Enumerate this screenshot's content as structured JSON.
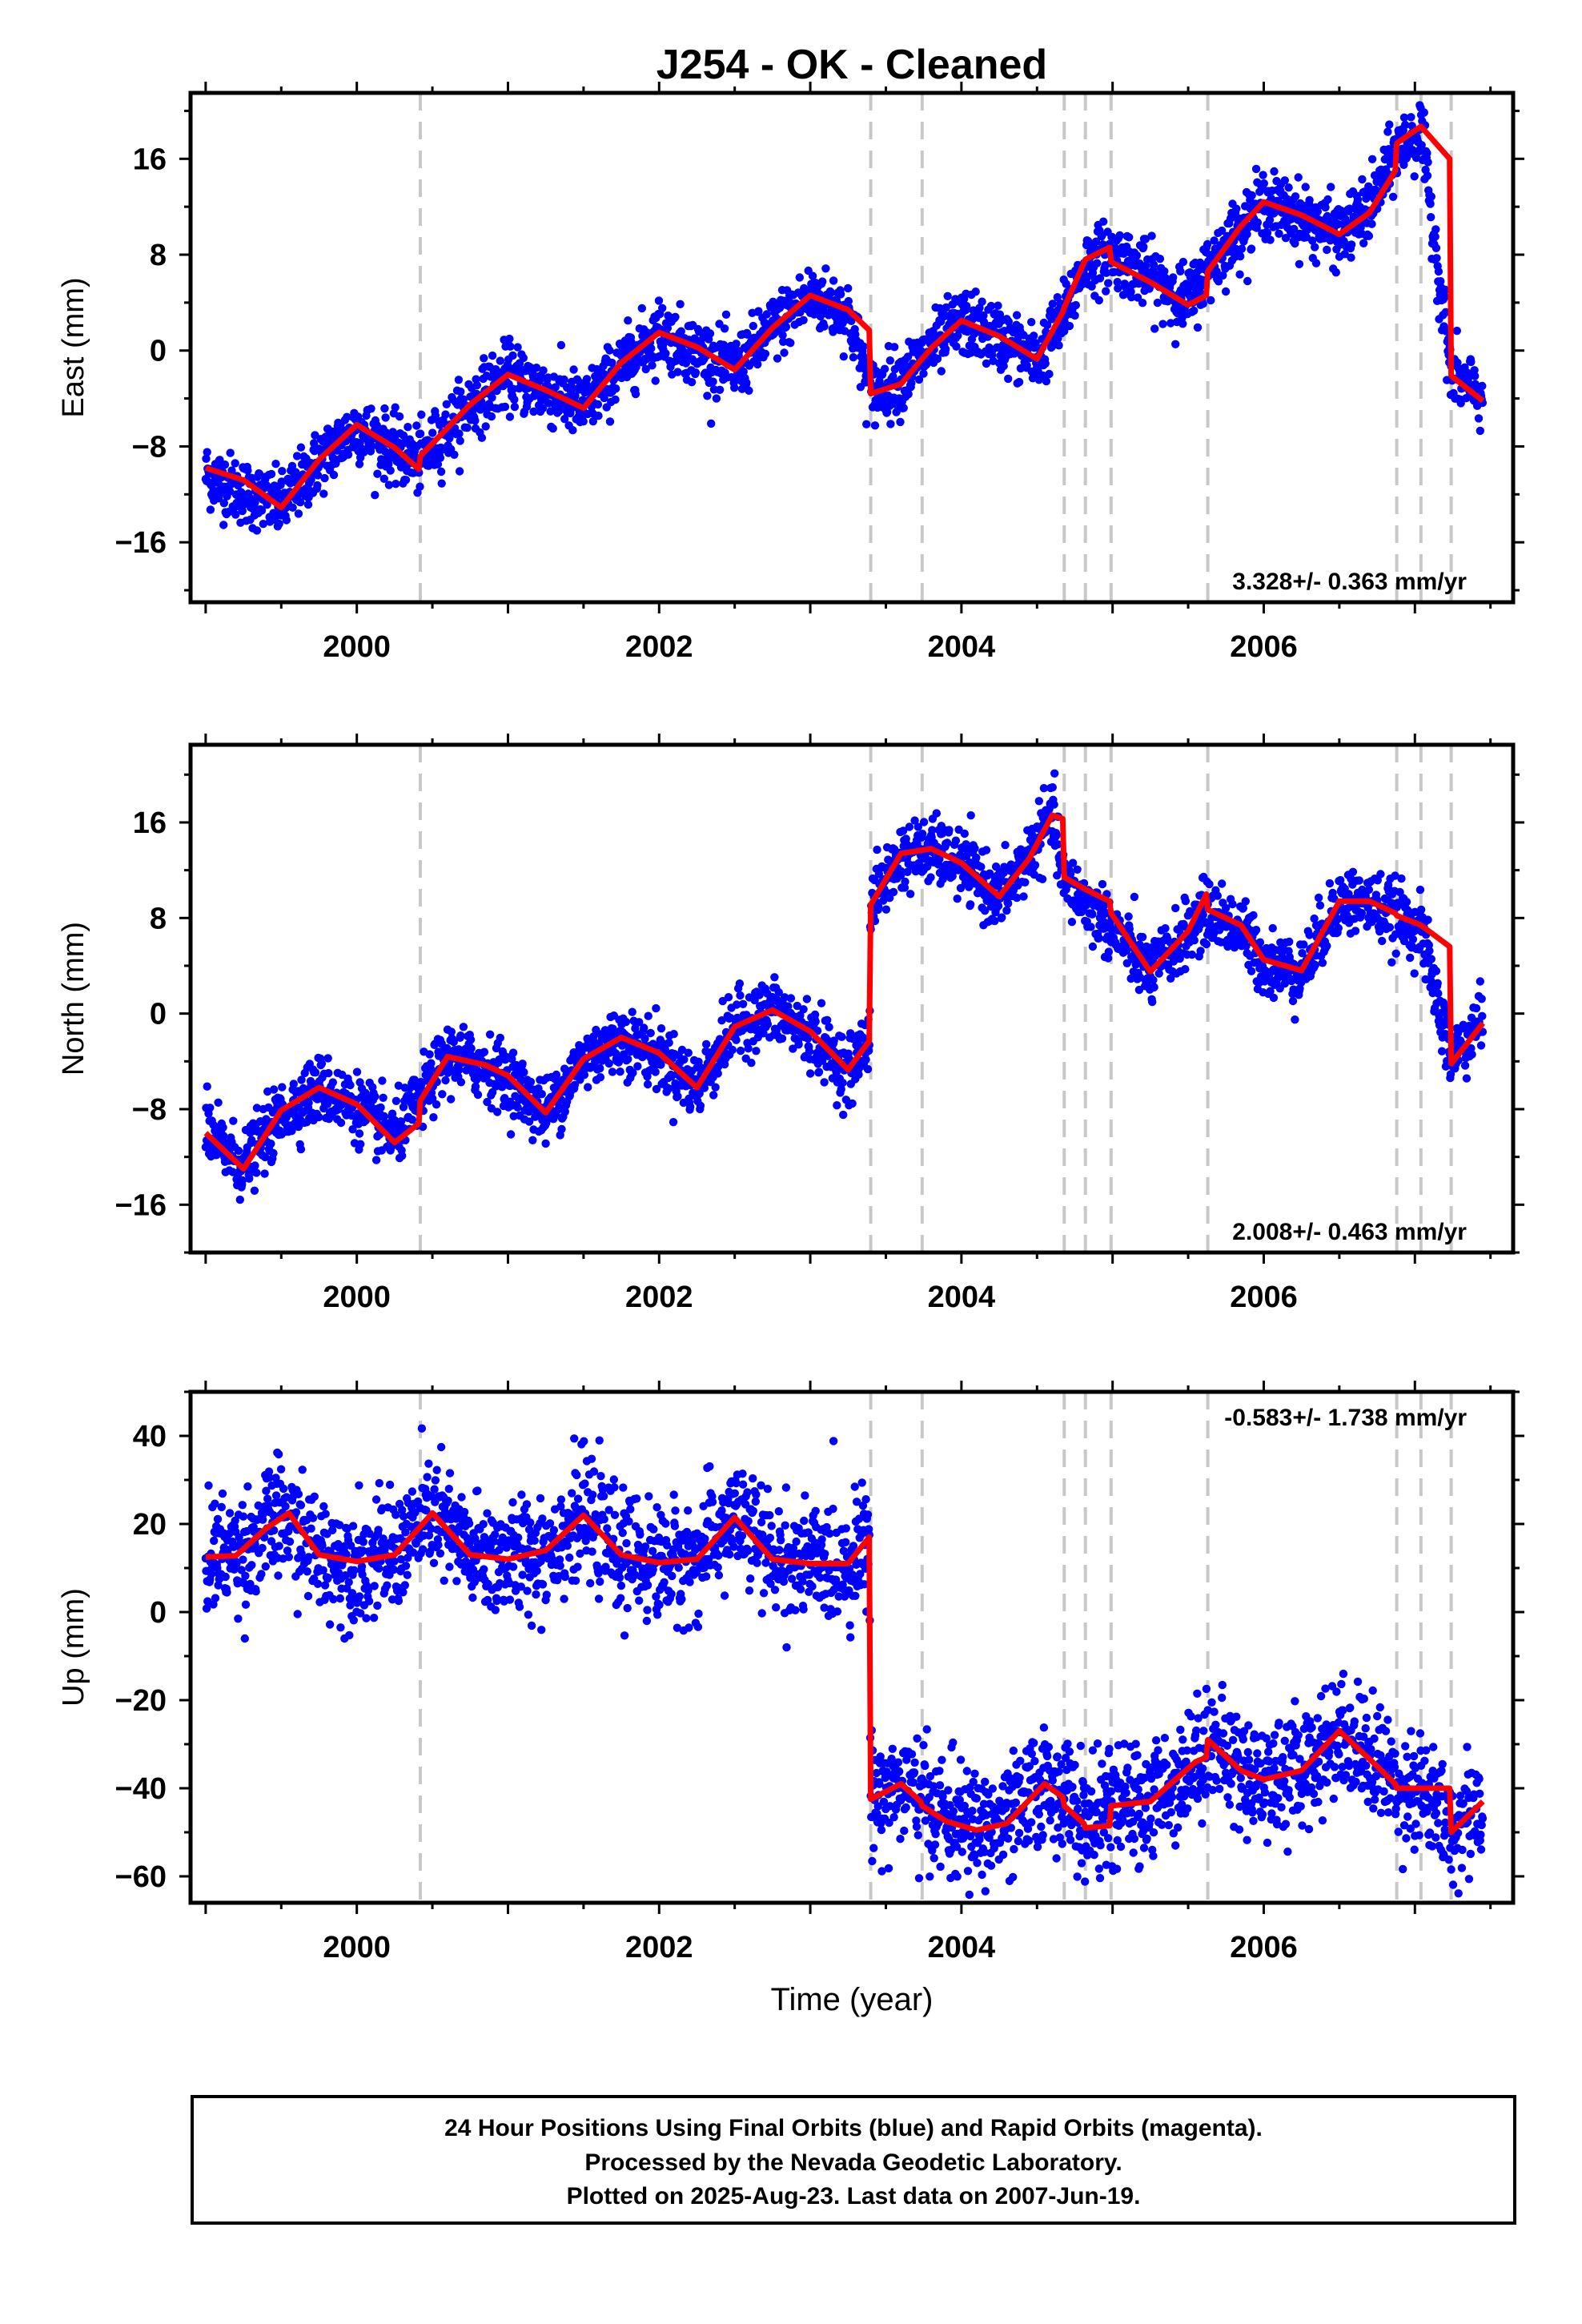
{
  "chart_data": [
    {
      "type": "scatter",
      "title": "J254  - OK - Cleaned",
      "ylabel": "East (mm)",
      "xlim": [
        1998.9,
        2007.65
      ],
      "ylim": [
        -21,
        21.5
      ],
      "xticks": [
        2000,
        2002,
        2004,
        2006
      ],
      "xtick_labels": [
        "2000",
        "2002",
        "2004",
        "2006"
      ],
      "yticks": [
        -16,
        -8,
        0,
        8,
        16
      ],
      "ytick_labels": [
        "-16",
        "-8",
        "0",
        "8",
        "16"
      ],
      "rate_text": "3.328+/- 0.363 mm/yr",
      "step_epochs": [
        2000.42,
        2003.4,
        2003.74,
        2004.68,
        2004.82,
        2004.99,
        2005.63,
        2006.88,
        2007.04,
        2007.24
      ],
      "series": [
        {
          "color": "#0000ff",
          "points_description_values": {
            "x": [
              1999.0,
              1999.25,
              1999.5,
              1999.75,
              2000.0,
              2000.25,
              2000.42,
              2000.75,
              2001.0,
              2001.25,
              2001.5,
              2001.75,
              2002.0,
              2002.25,
              2002.5,
              2002.75,
              2003.0,
              2003.25,
              2003.4,
              2003.6,
              2003.8,
              2004.0,
              2004.25,
              2004.5,
              2004.68,
              2004.82,
              2004.99,
              2005.25,
              2005.5,
              2005.63,
              2005.85,
              2006.0,
              2006.25,
              2006.5,
              2006.7,
              2006.88,
              2007.04,
              2007.24,
              2007.45
            ],
            "y": [
              -10.3,
              -11.8,
              -13.0,
              -9.2,
              -6.4,
              -8.4,
              -9.2,
              -4.5,
              -2.0,
              -3.4,
              -4.8,
              -1.3,
              1.6,
              -0.1,
              -1.6,
              1.8,
              4.5,
              3.2,
              -3.5,
              -2.4,
              0.1,
              2.4,
              1.1,
              -0.8,
              2.9,
              7.3,
              8.1,
              6.1,
              4.1,
              6.9,
              10.3,
              12.3,
              11.1,
              9.6,
              11.8,
              16.7,
              18.3,
              -1.9,
              -4.0
            ]
          }
        }
      ],
      "model": {
        "color": "#ff0000",
        "x": [
          1999.0,
          1999.25,
          1999.5,
          1999.75,
          2000.0,
          2000.25,
          2000.41,
          2000.42,
          2000.75,
          2001.0,
          2001.25,
          2001.5,
          2001.75,
          2002.0,
          2002.25,
          2002.5,
          2002.75,
          2003.0,
          2003.25,
          2003.39,
          2003.4,
          2003.6,
          2003.8,
          2004.0,
          2004.25,
          2004.5,
          2004.67,
          2004.68,
          2004.82,
          2004.98,
          2004.99,
          2005.25,
          2005.5,
          2005.62,
          2005.63,
          2005.85,
          2006.0,
          2006.25,
          2006.5,
          2006.7,
          2006.87,
          2006.88,
          2007.04,
          2007.23,
          2007.24,
          2007.45
        ],
        "y": [
          -9.8,
          -10.8,
          -13.1,
          -9.1,
          -6.2,
          -8.1,
          -9.9,
          -8.8,
          -4.5,
          -2.0,
          -3.3,
          -4.8,
          -1.0,
          1.5,
          0.3,
          -1.6,
          1.9,
          4.6,
          3.4,
          1.7,
          -3.6,
          -2.8,
          0.2,
          2.5,
          1.2,
          -0.7,
          3.2,
          3.6,
          7.6,
          8.6,
          7.4,
          5.7,
          3.8,
          4.6,
          6.6,
          10.4,
          12.4,
          11.3,
          9.7,
          11.5,
          15.0,
          17.3,
          18.7,
          16.0,
          -2.1,
          -4.2
        ]
      }
    },
    {
      "type": "scatter",
      "ylabel": "North (mm)",
      "xlim": [
        1998.9,
        2007.65
      ],
      "ylim": [
        -20,
        22.5
      ],
      "xticks": [
        2000,
        2002,
        2004,
        2006
      ],
      "xtick_labels": [
        "2000",
        "2002",
        "2004",
        "2006"
      ],
      "yticks": [
        -16,
        -8,
        0,
        8,
        16
      ],
      "ytick_labels": [
        "-16",
        "-8",
        "0",
        "8",
        "16"
      ],
      "rate_text": "2.008+/- 0.463 mm/yr",
      "step_epochs": [
        2000.42,
        2003.4,
        2003.74,
        2004.68,
        2004.82,
        2004.99,
        2005.63,
        2006.88,
        2007.04,
        2007.24
      ],
      "series": [
        {
          "color": "#0000ff",
          "points_description_values": {
            "x": [
              1999.0,
              1999.25,
              1999.5,
              1999.75,
              2000.0,
              2000.25,
              2000.42,
              2000.6,
              2000.85,
              2001.0,
              2001.25,
              2001.5,
              2001.75,
              2002.0,
              2002.25,
              2002.5,
              2002.75,
              2003.0,
              2003.25,
              2003.39,
              2003.4,
              2003.6,
              2003.8,
              2004.0,
              2004.25,
              2004.45,
              2004.6,
              2004.68,
              2004.82,
              2004.99,
              2005.25,
              2005.5,
              2005.63,
              2005.85,
              2006.0,
              2006.25,
              2006.5,
              2006.7,
              2006.88,
              2007.04,
              2007.24,
              2007.45
            ],
            "y": [
              -10.0,
              -12.8,
              -8.5,
              -6.2,
              -7.8,
              -10.3,
              -7.2,
              -3.6,
              -4.4,
              -5.4,
              -8.4,
              -3.8,
              -2.1,
              -3.5,
              -6.2,
              -1.0,
              0.2,
              -1.8,
              -4.8,
              -2.1,
              9.2,
              13.2,
              13.6,
              12.5,
              9.6,
              13.2,
              16.8,
              11.0,
              9.3,
              7.3,
              3.3,
              6.8,
              8.6,
              7.0,
              4.3,
              3.5,
              9.5,
              9.2,
              8.2,
              7.0,
              -3.8,
              -0.5
            ]
          }
        }
      ],
      "model": {
        "color": "#ff0000",
        "x": [
          1999.0,
          1999.25,
          1999.5,
          1999.75,
          2000.0,
          2000.25,
          2000.41,
          2000.42,
          2000.6,
          2000.85,
          2001.0,
          2001.25,
          2001.5,
          2001.75,
          2002.0,
          2002.25,
          2002.5,
          2002.75,
          2003.0,
          2003.25,
          2003.39,
          2003.4,
          2003.6,
          2003.8,
          2004.0,
          2004.25,
          2004.45,
          2004.6,
          2004.67,
          2004.68,
          2004.82,
          2004.98,
          2004.99,
          2005.25,
          2005.5,
          2005.62,
          2005.63,
          2005.85,
          2006.0,
          2006.25,
          2006.5,
          2006.7,
          2006.87,
          2006.88,
          2007.04,
          2007.23,
          2007.24,
          2007.45
        ],
        "y": [
          -10.0,
          -13.0,
          -8.1,
          -6.2,
          -7.6,
          -10.8,
          -9.2,
          -7.3,
          -3.6,
          -4.3,
          -5.2,
          -8.3,
          -3.8,
          -2.0,
          -3.3,
          -6.2,
          -1.1,
          0.3,
          -1.5,
          -4.7,
          -2.3,
          9.1,
          13.4,
          13.8,
          12.6,
          9.8,
          13.0,
          16.6,
          16.3,
          11.4,
          10.4,
          9.4,
          8.4,
          3.5,
          6.9,
          10.0,
          8.7,
          7.4,
          4.5,
          3.6,
          9.4,
          9.4,
          8.4,
          8.2,
          7.4,
          5.6,
          -4.2,
          -0.8
        ]
      }
    },
    {
      "type": "scatter",
      "ylabel": "Up (mm)",
      "xlabel": "Time (year)",
      "xlim": [
        1998.9,
        2007.65
      ],
      "ylim": [
        -66,
        50
      ],
      "xticks": [
        2000,
        2002,
        2004,
        2006
      ],
      "xtick_labels": [
        "2000",
        "2002",
        "2004",
        "2006"
      ],
      "yticks": [
        -60,
        -40,
        -20,
        0,
        20,
        40
      ],
      "ytick_labels": [
        "-60",
        "-40",
        "-20",
        "0",
        "20",
        "40"
      ],
      "rate_text": "-0.583+/- 1.738 mm/yr",
      "step_epochs": [
        2000.42,
        2003.4,
        2003.74,
        2004.68,
        2004.82,
        2004.99,
        2005.63,
        2006.88,
        2007.04,
        2007.24
      ],
      "series": [
        {
          "color": "#0000ff",
          "points_description_values": {
            "x": [
              1999.0,
              1999.25,
              1999.5,
              1999.75,
              2000.0,
              2000.25,
              2000.5,
              2000.75,
              2001.0,
              2001.25,
              2001.5,
              2001.75,
              2002.0,
              2002.25,
              2002.5,
              2002.75,
              2003.0,
              2003.25,
              2003.39,
              2003.4,
              2003.6,
              2003.9,
              2004.1,
              2004.3,
              2004.55,
              2004.68,
              2004.82,
              2004.99,
              2005.25,
              2005.55,
              2005.63,
              2005.85,
              2006.0,
              2006.25,
              2006.5,
              2006.75,
              2006.88,
              2007.04,
              2007.24,
              2007.45
            ],
            "y": [
              13,
              14,
              22,
              13,
              11,
              13,
              23,
              13,
              12,
              14,
              22,
              13,
              11,
              12,
              22,
              12,
              11,
              11,
              17,
              -42,
              -39,
              -47,
              -49,
              -48,
              -39,
              -41,
              -48,
              -45,
              -43,
              -34,
              -29,
              -36,
              -38,
              -36,
              -27,
              -34,
              -39,
              -40,
              -50,
              -42
            ]
          }
        }
      ],
      "model": {
        "color": "#ff0000",
        "x": [
          1999.0,
          1999.2,
          1999.4,
          1999.55,
          1999.75,
          2000.0,
          2000.25,
          2000.41,
          2000.5,
          2000.75,
          2001.0,
          2001.25,
          2001.5,
          2001.75,
          2002.0,
          2002.25,
          2002.5,
          2002.75,
          2003.0,
          2003.25,
          2003.39,
          2003.4,
          2003.6,
          2003.73,
          2003.74,
          2003.9,
          2004.1,
          2004.3,
          2004.55,
          2004.67,
          2004.68,
          2004.81,
          2004.82,
          2004.98,
          2004.99,
          2005.25,
          2005.55,
          2005.62,
          2005.63,
          2005.85,
          2006.0,
          2006.25,
          2006.5,
          2006.75,
          2006.87,
          2006.88,
          2007.03,
          2007.04,
          2007.23,
          2007.24,
          2007.45
        ],
        "y": [
          12.5,
          12.8,
          19,
          22.5,
          13,
          11.5,
          13,
          19,
          22.5,
          13,
          12,
          14,
          22,
          13,
          11.2,
          12,
          21.5,
          12,
          11,
          11,
          17,
          -42.5,
          -39,
          -43,
          -44,
          -47.5,
          -49.5,
          -48,
          -39,
          -42,
          -44,
          -48,
          -49,
          -48.5,
          -44,
          -43,
          -34,
          -33,
          -29,
          -36,
          -38,
          -36,
          -27,
          -35,
          -39,
          -40,
          -40,
          -40,
          -40,
          -50,
          -43
        ]
      }
    }
  ],
  "footer": {
    "line1": "24 Hour Positions Using Final Orbits (blue) and Rapid Orbits (magenta).",
    "line2": "Processed by the Nevada Geodetic Laboratory.",
    "line3": "Plotted on 2025-Aug-23. Last data on 2007-Jun-19."
  }
}
